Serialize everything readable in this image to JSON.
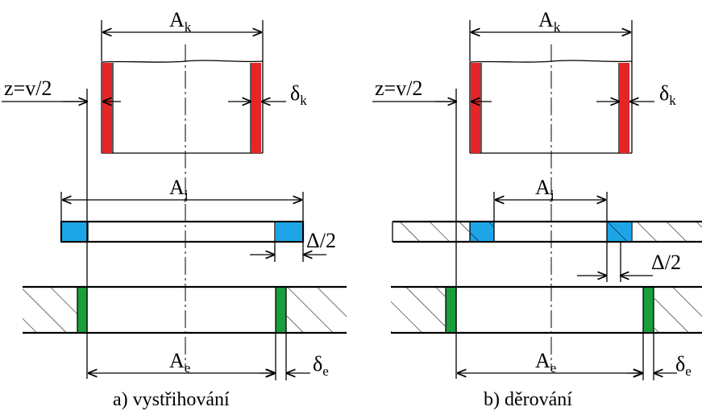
{
  "colors": {
    "punch_wall": "#e52528",
    "die_wall": "#1a9e3c",
    "part": "#1ea5e8",
    "line": "#000000"
  },
  "left": {
    "caption": "a) vystřihování",
    "punch": {
      "dim_label": "A",
      "dim_sub": "k",
      "wall_label": "δ",
      "wall_sub": "k",
      "clearance_label": "z=v/2"
    },
    "part": {
      "dim_label": "A",
      "dim_sub": "j",
      "offset_label": "Δ/2"
    },
    "die": {
      "dim_label": "A",
      "dim_sub": "e",
      "wall_label": "δ",
      "wall_sub": "e"
    }
  },
  "right": {
    "caption": "b) děrování",
    "punch": {
      "dim_label": "A",
      "dim_sub": "k",
      "wall_label": "δ",
      "wall_sub": "k",
      "clearance_label": "z=v/2"
    },
    "part": {
      "dim_label": "A",
      "dim_sub": "j",
      "offset_label": "Δ/2"
    },
    "die": {
      "dim_label": "A",
      "dim_sub": "e",
      "wall_label": "δ",
      "wall_sub": "e"
    }
  }
}
